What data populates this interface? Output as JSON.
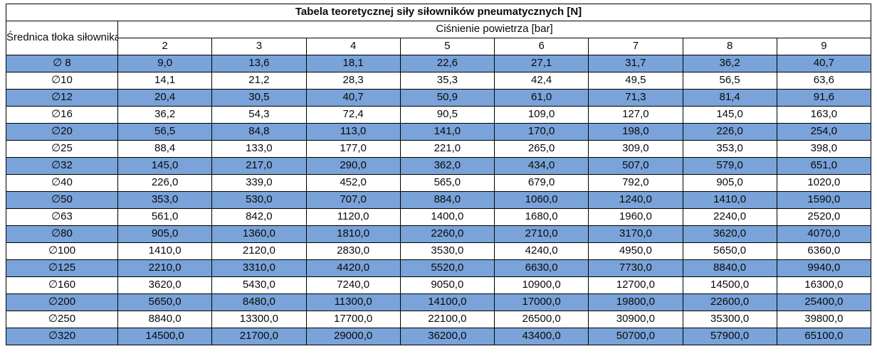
{
  "title": "Tabela teoretycznej siły siłowników pneumatycznych [N]",
  "table": {
    "row_header": "Średnica tłoka siłownika",
    "col_group_header": "Ciśnienie powietrza [bar]",
    "pressures": [
      "2",
      "3",
      "4",
      "5",
      "6",
      "7",
      "8",
      "9"
    ],
    "rows": [
      {
        "diameter": "∅ 8",
        "highlight": true,
        "values": [
          "9,0",
          "13,6",
          "18,1",
          "22,6",
          "27,1",
          "31,7",
          "36,2",
          "40,7"
        ]
      },
      {
        "diameter": "∅10",
        "highlight": false,
        "values": [
          "14,1",
          "21,2",
          "28,3",
          "35,3",
          "42,4",
          "49,5",
          "56,5",
          "63,6"
        ]
      },
      {
        "diameter": "∅12",
        "highlight": true,
        "values": [
          "20,4",
          "30,5",
          "40,7",
          "50,9",
          "61,0",
          "71,3",
          "81,4",
          "91,6"
        ]
      },
      {
        "diameter": "∅16",
        "highlight": false,
        "values": [
          "36,2",
          "54,3",
          "72,4",
          "90,5",
          "109,0",
          "127,0",
          "145,0",
          "163,0"
        ]
      },
      {
        "diameter": "∅20",
        "highlight": true,
        "values": [
          "56,5",
          "84,8",
          "113,0",
          "141,0",
          "170,0",
          "198,0",
          "226,0",
          "254,0"
        ]
      },
      {
        "diameter": "∅25",
        "highlight": false,
        "values": [
          "88,4",
          "133,0",
          "177,0",
          "221,0",
          "265,0",
          "309,0",
          "353,0",
          "398,0"
        ]
      },
      {
        "diameter": "∅32",
        "highlight": true,
        "values": [
          "145,0",
          "217,0",
          "290,0",
          "362,0",
          "434,0",
          "507,0",
          "579,0",
          "651,0"
        ]
      },
      {
        "diameter": "∅40",
        "highlight": false,
        "values": [
          "226,0",
          "339,0",
          "452,0",
          "565,0",
          "679,0",
          "792,0",
          "905,0",
          "1020,0"
        ]
      },
      {
        "diameter": "∅50",
        "highlight": true,
        "values": [
          "353,0",
          "530,0",
          "707,0",
          "884,0",
          "1060,0",
          "1240,0",
          "1410,0",
          "1590,0"
        ]
      },
      {
        "diameter": "∅63",
        "highlight": false,
        "values": [
          "561,0",
          "842,0",
          "1120,0",
          "1400,0",
          "1680,0",
          "1960,0",
          "2240,0",
          "2520,0"
        ]
      },
      {
        "diameter": "∅80",
        "highlight": true,
        "values": [
          "905,0",
          "1360,0",
          "1810,0",
          "2260,0",
          "2710,0",
          "3170,0",
          "3620,0",
          "4070,0"
        ]
      },
      {
        "diameter": "∅100",
        "highlight": false,
        "values": [
          "1410,0",
          "2120,0",
          "2830,0",
          "3530,0",
          "4240,0",
          "4950,0",
          "5650,0",
          "6360,0"
        ]
      },
      {
        "diameter": "∅125",
        "highlight": true,
        "values": [
          "2210,0",
          "3310,0",
          "4420,0",
          "5520,0",
          "6630,0",
          "7730,0",
          "8840,0",
          "9940,0"
        ]
      },
      {
        "diameter": "∅160",
        "highlight": false,
        "values": [
          "3620,0",
          "5430,0",
          "7240,0",
          "9050,0",
          "10900,0",
          "12700,0",
          "14500,0",
          "16300,0"
        ]
      },
      {
        "diameter": "∅200",
        "highlight": true,
        "values": [
          "5650,0",
          "8480,0",
          "11300,0",
          "14100,0",
          "17000,0",
          "19800,0",
          "22600,0",
          "25400,0"
        ]
      },
      {
        "diameter": "∅250",
        "highlight": false,
        "values": [
          "8840,0",
          "13300,0",
          "17700,0",
          "22100,0",
          "26500,0",
          "30900,0",
          "35300,0",
          "39800,0"
        ]
      },
      {
        "diameter": "∅320",
        "highlight": true,
        "values": [
          "14500,0",
          "21700,0",
          "29000,0",
          "36200,0",
          "43400,0",
          "50700,0",
          "57900,0",
          "65100,0"
        ]
      }
    ]
  },
  "colors": {
    "highlight_row": "#79a3d9",
    "border": "#000000",
    "text": "#0a0a0a",
    "background": "#ffffff"
  }
}
